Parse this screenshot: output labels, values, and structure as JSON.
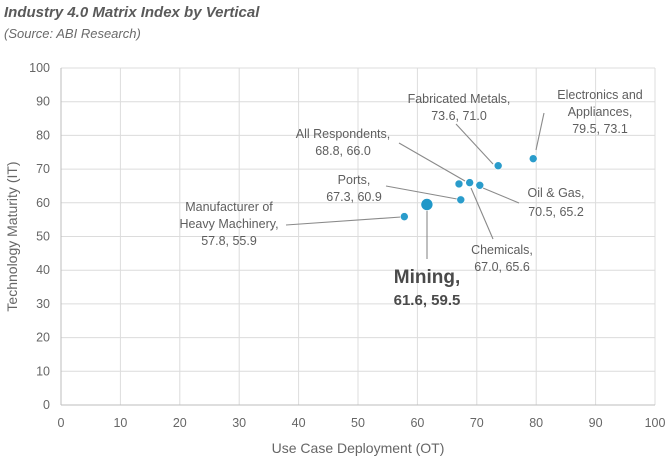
{
  "header": {
    "title": "Industry 4.0 Matrix Index by Vertical",
    "subtitle": "(Source: ABI Research)"
  },
  "chart_data": {
    "type": "scatter",
    "title": "Industry 4.0 Matrix Index by Vertical",
    "subtitle": "(Source: ABI Research)",
    "xlabel": "Use Case Deployment (OT)",
    "ylabel": "Technology Maturity (IT)",
    "xlim": [
      0,
      100
    ],
    "ylim": [
      0,
      100
    ],
    "xticks": [
      "0",
      "10",
      "20",
      "30",
      "40",
      "50",
      "60",
      "70",
      "80",
      "90",
      "100"
    ],
    "yticks": [
      "0",
      "10",
      "20",
      "30",
      "40",
      "50",
      "60",
      "70",
      "80",
      "90",
      "100"
    ],
    "grid": true,
    "point_color": "#1f97c8",
    "points": [
      {
        "name": "Mining",
        "x": 61.6,
        "y": 59.5,
        "label_lines": [
          "Mining,",
          "61.6, 59.5"
        ],
        "highlight": true
      },
      {
        "name": "Manufacturer of Heavy Machinery",
        "x": 57.8,
        "y": 55.9,
        "label_lines": [
          "Manufacturer of",
          "Heavy Machinery,",
          "57.8, 55.9"
        ]
      },
      {
        "name": "Ports",
        "x": 67.3,
        "y": 60.9,
        "label_lines": [
          "Ports,",
          "67.3, 60.9"
        ]
      },
      {
        "name": "All Respondents",
        "x": 68.8,
        "y": 66.0,
        "label_lines": [
          "All Respondents,",
          "68.8, 66.0"
        ]
      },
      {
        "name": "Chemicals",
        "x": 67.0,
        "y": 65.6,
        "label_lines": [
          "Chemicals,",
          "67.0, 65.6"
        ]
      },
      {
        "name": "Oil & Gas",
        "x": 70.5,
        "y": 65.2,
        "label_lines": [
          "Oil & Gas,",
          "70.5, 65.2"
        ]
      },
      {
        "name": "Fabricated Metals",
        "x": 73.6,
        "y": 71.0,
        "label_lines": [
          "Fabricated Metals,",
          "73.6, 71.0"
        ]
      },
      {
        "name": "Electronics and Appliances",
        "x": 79.5,
        "y": 73.1,
        "label_lines": [
          "Electronics and",
          "Appliances,",
          "79.5, 73.1"
        ]
      }
    ]
  }
}
